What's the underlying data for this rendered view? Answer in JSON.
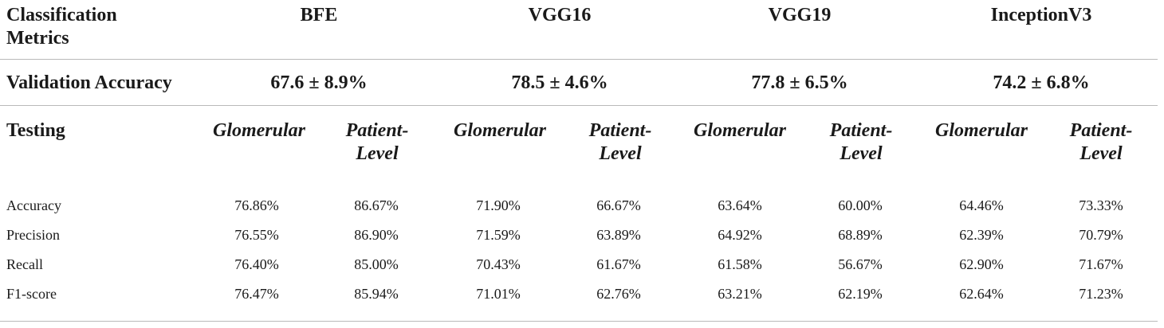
{
  "header": {
    "metric_label": "Classification Metrics",
    "models": [
      "BFE",
      "VGG16",
      "VGG19",
      "InceptionV3"
    ]
  },
  "validation": {
    "label": "Validation Accuracy",
    "values": [
      "67.6 ± 8.9%",
      "78.5 ± 4.6%",
      "77.8 ± 6.5%",
      "74.2 ± 6.8%"
    ]
  },
  "testing": {
    "label": "Testing",
    "sublevels": [
      "Glomerular",
      "Patient-Level",
      "Glomerular",
      "Patient-Level",
      "Glomerular",
      "Patient-Level",
      "Glomerular",
      "Patient-Level"
    ]
  },
  "metrics": [
    {
      "name": "Accuracy",
      "values": [
        "76.86%",
        "86.67%",
        "71.90%",
        "66.67%",
        "63.64%",
        "60.00%",
        "64.46%",
        "73.33%"
      ]
    },
    {
      "name": "Precision",
      "values": [
        "76.55%",
        "86.90%",
        "71.59%",
        "63.89%",
        "64.92%",
        "68.89%",
        "62.39%",
        "70.79%"
      ]
    },
    {
      "name": "Recall",
      "values": [
        "76.40%",
        "85.00%",
        "70.43%",
        "61.67%",
        "61.58%",
        "56.67%",
        "62.90%",
        "71.67%"
      ]
    },
    {
      "name": "F1-score",
      "values": [
        "76.47%",
        "85.94%",
        "71.01%",
        "62.76%",
        "63.21%",
        "62.19%",
        "62.64%",
        "71.23%"
      ]
    }
  ]
}
